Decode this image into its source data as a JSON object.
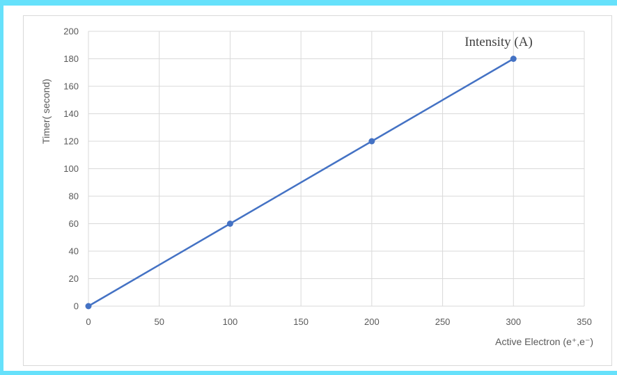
{
  "chart_data": {
    "type": "scatter",
    "xlabel": "Active Electron (e⁺,e⁻)",
    "ylabel": "Timer( second)",
    "annotation": "Intensity (A)",
    "xlim": [
      0,
      350
    ],
    "ylim": [
      0,
      200
    ],
    "x_ticks": [
      "0",
      "50",
      "100",
      "150",
      "200",
      "250",
      "300",
      "350"
    ],
    "y_ticks": [
      "0",
      "20",
      "40",
      "60",
      "80",
      "100",
      "120",
      "140",
      "160",
      "180",
      "200"
    ],
    "grid": true,
    "legend": "none",
    "series": [
      {
        "x": [
          0,
          100,
          200,
          300
        ],
        "y": [
          0,
          60,
          120,
          180
        ],
        "line": true,
        "markers": true,
        "color": "#4472c4"
      }
    ],
    "colors": {
      "series": "#4472c4",
      "grid": "#d9d9d9",
      "text": "#595959",
      "frame_edge": "#66e1fb"
    }
  }
}
